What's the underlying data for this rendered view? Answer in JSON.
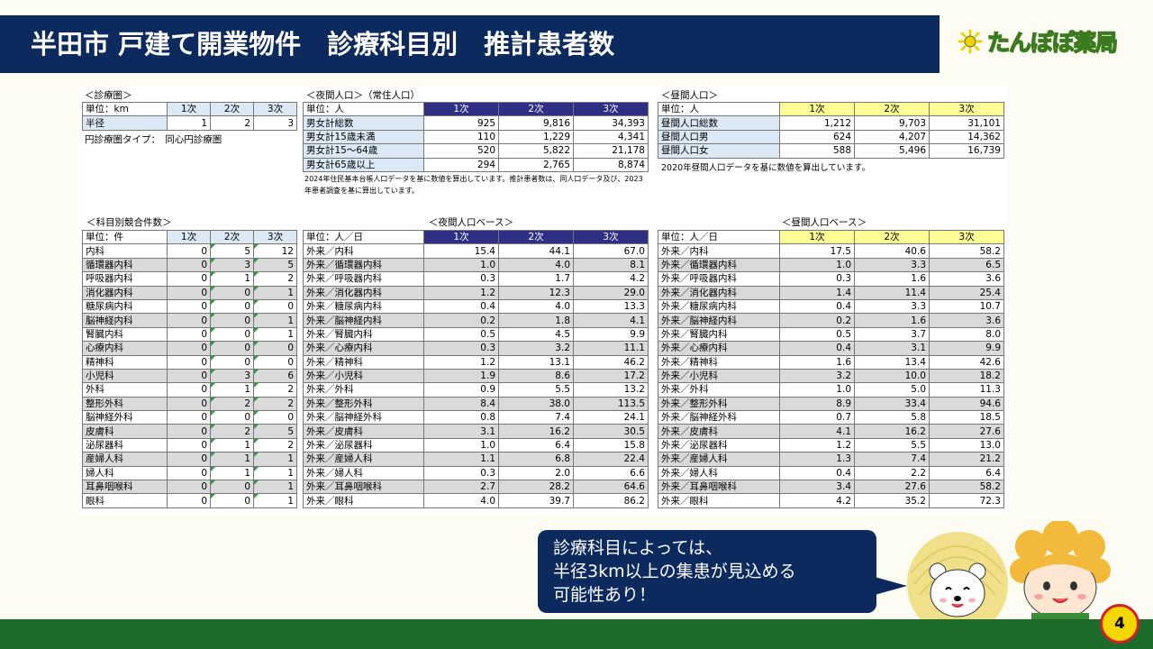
{
  "header": {
    "title": "半田市 戸建て開業物件　診療科目別　推計患者数",
    "logo_text": "たんぽぽ薬局"
  },
  "area": {
    "caption": "＜診療圏＞",
    "unit": "単位：km",
    "cols": [
      "1次",
      "2次",
      "3次"
    ],
    "rows": [
      {
        "label": "半径",
        "values": [
          "1",
          "2",
          "3"
        ]
      }
    ],
    "type_label": "円診療圏タイプ：　同心円診療圏"
  },
  "night_pop": {
    "caption": "＜夜間人口＞（常住人口）",
    "unit": "単位：人",
    "cols": [
      "1次",
      "2次",
      "3次"
    ],
    "rows": [
      {
        "label": "男女計総数",
        "values": [
          "925",
          "9,816",
          "34,393"
        ]
      },
      {
        "label": "男女計15歳未満",
        "values": [
          "110",
          "1,229",
          "4,341"
        ]
      },
      {
        "label": "男女計15～64歳",
        "values": [
          "520",
          "5,822",
          "21,178"
        ]
      },
      {
        "label": "男女計65歳以上",
        "values": [
          "294",
          "2,765",
          "8,874"
        ]
      }
    ],
    "note_line1": "2024年住民基本台帳人口データを基に数値を算出しています。推計患者数は、同人口データ及び、2023",
    "note_line2": "年患者調査を基に算出しています。"
  },
  "day_pop": {
    "caption": "＜昼間人口＞",
    "unit": "単位：人",
    "cols": [
      "1次",
      "2次",
      "3次"
    ],
    "rows": [
      {
        "label": "昼間人口総数",
        "values": [
          "1,212",
          "9,703",
          "31,101"
        ]
      },
      {
        "label": "昼間人口男",
        "values": [
          "624",
          "4,207",
          "14,362"
        ]
      },
      {
        "label": "昼間人口女",
        "values": [
          "588",
          "5,496",
          "16,739"
        ]
      }
    ],
    "note": "2020年昼間人口データを基に数値を算出しています。"
  },
  "competition": {
    "caption": "＜科目別競合件数＞",
    "unit": "単位：件",
    "cols": [
      "1次",
      "2次",
      "3次"
    ],
    "rows": [
      {
        "label": "内科",
        "values": [
          "0",
          "5",
          "12"
        ]
      },
      {
        "label": "循環器内科",
        "values": [
          "0",
          "3",
          "5"
        ]
      },
      {
        "label": "呼吸器内科",
        "values": [
          "0",
          "1",
          "2"
        ]
      },
      {
        "label": "消化器内科",
        "values": [
          "0",
          "0",
          "1"
        ]
      },
      {
        "label": "糖尿病内科",
        "values": [
          "0",
          "0",
          "0"
        ]
      },
      {
        "label": "脳神経内科",
        "values": [
          "0",
          "0",
          "1"
        ]
      },
      {
        "label": "腎臓内科",
        "values": [
          "0",
          "0",
          "1"
        ]
      },
      {
        "label": "心療内科",
        "values": [
          "0",
          "0",
          "0"
        ]
      },
      {
        "label": "精神科",
        "values": [
          "0",
          "0",
          "0"
        ]
      },
      {
        "label": "小児科",
        "values": [
          "0",
          "3",
          "6"
        ]
      },
      {
        "label": "外科",
        "values": [
          "0",
          "1",
          "2"
        ]
      },
      {
        "label": "整形外科",
        "values": [
          "0",
          "2",
          "2"
        ]
      },
      {
        "label": "脳神経外科",
        "values": [
          "0",
          "0",
          "0"
        ]
      },
      {
        "label": "皮膚科",
        "values": [
          "0",
          "2",
          "5"
        ]
      },
      {
        "label": "泌尿器科",
        "values": [
          "0",
          "1",
          "2"
        ]
      },
      {
        "label": "産婦人科",
        "values": [
          "0",
          "1",
          "1"
        ]
      },
      {
        "label": "婦人科",
        "values": [
          "0",
          "1",
          "1"
        ]
      },
      {
        "label": "耳鼻咽喉科",
        "values": [
          "0",
          "0",
          "1"
        ]
      },
      {
        "label": "眼科",
        "values": [
          "0",
          "0",
          "1"
        ]
      }
    ]
  },
  "night_base": {
    "caption": "＜夜間人口ベース＞",
    "unit": "単位：人／日",
    "cols": [
      "1次",
      "2次",
      "3次"
    ],
    "rows": [
      {
        "label": "外来／内科",
        "values": [
          "15.4",
          "44.1",
          "67.0"
        ]
      },
      {
        "label": "外来／循環器内科",
        "values": [
          "1.0",
          "4.0",
          "8.1"
        ]
      },
      {
        "label": "外来／呼吸器内科",
        "values": [
          "0.3",
          "1.7",
          "4.2"
        ]
      },
      {
        "label": "外来／消化器内科",
        "values": [
          "1.2",
          "12.3",
          "29.0"
        ]
      },
      {
        "label": "外来／糖尿病内科",
        "values": [
          "0.4",
          "4.0",
          "13.3"
        ]
      },
      {
        "label": "外来／脳神経内科",
        "values": [
          "0.2",
          "1.8",
          "4.1"
        ]
      },
      {
        "label": "外来／腎臓内科",
        "values": [
          "0.5",
          "4.5",
          "9.9"
        ]
      },
      {
        "label": "外来／心療内科",
        "values": [
          "0.3",
          "3.2",
          "11.1"
        ]
      },
      {
        "label": "外来／精神科",
        "values": [
          "1.2",
          "13.1",
          "46.2"
        ]
      },
      {
        "label": "外来／小児科",
        "values": [
          "1.9",
          "8.6",
          "17.2"
        ]
      },
      {
        "label": "外来／外科",
        "values": [
          "0.9",
          "5.5",
          "13.2"
        ]
      },
      {
        "label": "外来／整形外科",
        "values": [
          "8.4",
          "38.0",
          "113.5"
        ]
      },
      {
        "label": "外来／脳神経外科",
        "values": [
          "0.8",
          "7.4",
          "24.1"
        ]
      },
      {
        "label": "外来／皮膚科",
        "values": [
          "3.1",
          "16.2",
          "30.5"
        ]
      },
      {
        "label": "外来／泌尿器科",
        "values": [
          "1.0",
          "6.4",
          "15.8"
        ]
      },
      {
        "label": "外来／産婦人科",
        "values": [
          "1.1",
          "6.8",
          "22.4"
        ]
      },
      {
        "label": "外来／婦人科",
        "values": [
          "0.3",
          "2.0",
          "6.6"
        ]
      },
      {
        "label": "外来／耳鼻咽喉科",
        "values": [
          "2.7",
          "28.2",
          "64.6"
        ]
      },
      {
        "label": "外来／眼科",
        "values": [
          "4.0",
          "39.7",
          "86.2"
        ]
      }
    ]
  },
  "day_base": {
    "caption": "＜昼間人口ベース＞",
    "unit": "単位：人／日",
    "cols": [
      "1次",
      "2次",
      "3次"
    ],
    "rows": [
      {
        "label": "外来／内科",
        "values": [
          "17.5",
          "40.6",
          "58.2"
        ]
      },
      {
        "label": "外来／循環器内科",
        "values": [
          "1.0",
          "3.3",
          "6.5"
        ]
      },
      {
        "label": "外来／呼吸器内科",
        "values": [
          "0.3",
          "1.6",
          "3.6"
        ]
      },
      {
        "label": "外来／消化器内科",
        "values": [
          "1.4",
          "11.4",
          "25.4"
        ]
      },
      {
        "label": "外来／糖尿病内科",
        "values": [
          "0.4",
          "3.3",
          "10.7"
        ]
      },
      {
        "label": "外来／脳神経内科",
        "values": [
          "0.2",
          "1.6",
          "3.6"
        ]
      },
      {
        "label": "外来／腎臓内科",
        "values": [
          "0.5",
          "3.7",
          "8.0"
        ]
      },
      {
        "label": "外来／心療内科",
        "values": [
          "0.4",
          "3.1",
          "9.9"
        ]
      },
      {
        "label": "外来／精神科",
        "values": [
          "1.6",
          "13.4",
          "42.6"
        ]
      },
      {
        "label": "外来／小児科",
        "values": [
          "3.2",
          "10.0",
          "18.2"
        ]
      },
      {
        "label": "外来／外科",
        "values": [
          "1.0",
          "5.0",
          "11.3"
        ]
      },
      {
        "label": "外来／整形外科",
        "values": [
          "8.9",
          "33.4",
          "94.6"
        ]
      },
      {
        "label": "外来／脳神経外科",
        "values": [
          "0.7",
          "5.8",
          "18.5"
        ]
      },
      {
        "label": "外来／皮膚科",
        "values": [
          "4.1",
          "16.2",
          "27.6"
        ]
      },
      {
        "label": "外来／泌尿器科",
        "values": [
          "1.2",
          "5.5",
          "13.0"
        ]
      },
      {
        "label": "外来／産婦人科",
        "values": [
          "1.3",
          "7.4",
          "21.2"
        ]
      },
      {
        "label": "外来／婦人科",
        "values": [
          "0.4",
          "2.2",
          "6.4"
        ]
      },
      {
        "label": "外来／耳鼻咽喉科",
        "values": [
          "3.4",
          "27.6",
          "58.2"
        ]
      },
      {
        "label": "外来／眼科",
        "values": [
          "4.2",
          "35.2",
          "72.3"
        ]
      }
    ]
  },
  "callout": {
    "lines": [
      "診療科目によっては、",
      "半径3km以上の集患が見込める",
      "可能性あり！"
    ]
  },
  "page_number": "4",
  "colors": {
    "title_bg": "#0d2a5e",
    "night_header": "#302f86",
    "day_header": "#fdfd96",
    "area_header": "#dce9f5",
    "footer": "#1d6b2a",
    "logo_yellow": "#f2d100"
  }
}
